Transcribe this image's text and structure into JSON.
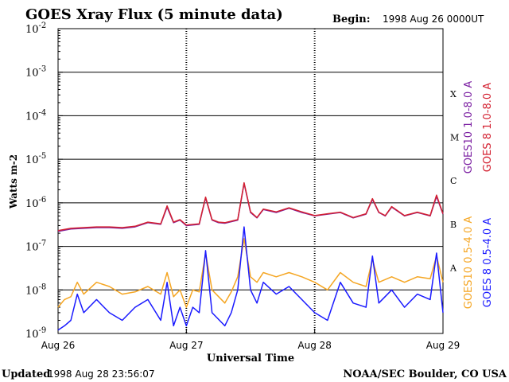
{
  "chart_data": {
    "type": "line",
    "title": "GOES Xray Flux (5 minute data)",
    "begin_label": "Begin:",
    "begin_value": "1998 Aug 26 0000UT",
    "ylabel": "Watts m-2",
    "xlabel": "Universal Time",
    "y_scale": "log",
    "ylim": [
      1e-09,
      0.01
    ],
    "y_ticks": [
      {
        "value": 0.01,
        "base": "10",
        "exp": "-2"
      },
      {
        "value": 0.001,
        "base": "10",
        "exp": "-3"
      },
      {
        "value": 0.0001,
        "base": "10",
        "exp": "-4"
      },
      {
        "value": 1e-05,
        "base": "10",
        "exp": "-5"
      },
      {
        "value": 1e-06,
        "base": "10",
        "exp": "-6"
      },
      {
        "value": 1e-07,
        "base": "10",
        "exp": "-7"
      },
      {
        "value": 1e-08,
        "base": "10",
        "exp": "-8"
      },
      {
        "value": 1e-09,
        "base": "10",
        "exp": "-9"
      }
    ],
    "x_unit": "days since 1998 Aug 26 0000UT",
    "xlim": [
      0,
      3
    ],
    "x_ticks": [
      {
        "value": 0,
        "label": "Aug 26"
      },
      {
        "value": 1,
        "label": "Aug 27"
      },
      {
        "value": 2,
        "label": "Aug 28"
      },
      {
        "value": 3,
        "label": "Aug 29"
      }
    ],
    "flare_classes": [
      {
        "label": "X",
        "value": 0.00032
      },
      {
        "label": "M",
        "value": 3.2e-05
      },
      {
        "label": "C",
        "value": 3.2e-06
      },
      {
        "label": "B",
        "value": 3.2e-07
      },
      {
        "label": "A",
        "value": 3.2e-08
      }
    ],
    "grid": "horizontal at each decade",
    "series": [
      {
        "name": "GOES10 1.0-8.0 A",
        "color": "#7b1fa2",
        "x": [
          0,
          0.1,
          0.2,
          0.3,
          0.4,
          0.5,
          0.6,
          0.7,
          0.8,
          0.85,
          0.9,
          0.95,
          1.0,
          1.1,
          1.15,
          1.2,
          1.25,
          1.3,
          1.4,
          1.45,
          1.5,
          1.55,
          1.6,
          1.7,
          1.8,
          1.9,
          2.0,
          2.1,
          2.2,
          2.3,
          2.4,
          2.45,
          2.5,
          2.55,
          2.6,
          2.7,
          2.8,
          2.9,
          2.95,
          3.0
        ],
        "values": [
          2.2e-07,
          2.5e-07,
          2.6e-07,
          2.7e-07,
          2.7e-07,
          2.6e-07,
          2.8e-07,
          3.5e-07,
          3.2e-07,
          8e-07,
          3.5e-07,
          4e-07,
          3e-07,
          3.2e-07,
          1.3e-06,
          4e-07,
          3.5e-07,
          3.4e-07,
          4e-07,
          2.8e-06,
          6e-07,
          4.5e-07,
          7e-07,
          6e-07,
          7.5e-07,
          6e-07,
          5e-07,
          5.5e-07,
          6e-07,
          4.5e-07,
          5.5e-07,
          1.2e-06,
          6e-07,
          5e-07,
          8e-07,
          5e-07,
          6e-07,
          5e-07,
          1.4e-06,
          5.5e-07
        ]
      },
      {
        "name": "GOES 8 1.0-8.0 A",
        "color": "#d32030",
        "x": [
          0,
          0.1,
          0.2,
          0.3,
          0.4,
          0.5,
          0.6,
          0.7,
          0.8,
          0.85,
          0.9,
          0.95,
          1.0,
          1.1,
          1.15,
          1.2,
          1.25,
          1.3,
          1.4,
          1.45,
          1.5,
          1.55,
          1.6,
          1.7,
          1.8,
          1.9,
          2.0,
          2.1,
          2.2,
          2.3,
          2.4,
          2.45,
          2.5,
          2.55,
          2.6,
          2.7,
          2.8,
          2.9,
          2.95,
          3.0
        ],
        "values": [
          2.3e-07,
          2.6e-07,
          2.7e-07,
          2.8e-07,
          2.8e-07,
          2.7e-07,
          2.9e-07,
          3.6e-07,
          3.3e-07,
          8.5e-07,
          3.6e-07,
          4.1e-07,
          3.1e-07,
          3.3e-07,
          1.35e-06,
          4.1e-07,
          3.6e-07,
          3.5e-07,
          4.1e-07,
          2.9e-06,
          6.2e-07,
          4.6e-07,
          7.2e-07,
          6.2e-07,
          7.7e-07,
          6.2e-07,
          5.1e-07,
          5.6e-07,
          6.1e-07,
          4.6e-07,
          5.6e-07,
          1.25e-06,
          6.1e-07,
          5.1e-07,
          8.2e-07,
          5.1e-07,
          6.1e-07,
          5.1e-07,
          1.5e-06,
          5.6e-07
        ]
      },
      {
        "name": "GOES10 0.5-4.0 A",
        "color": "#f5a623",
        "x": [
          0,
          0.05,
          0.1,
          0.15,
          0.2,
          0.3,
          0.4,
          0.5,
          0.6,
          0.7,
          0.8,
          0.85,
          0.9,
          0.95,
          1.0,
          1.05,
          1.1,
          1.15,
          1.2,
          1.3,
          1.35,
          1.4,
          1.45,
          1.5,
          1.55,
          1.6,
          1.7,
          1.8,
          1.9,
          2.0,
          2.1,
          2.2,
          2.3,
          2.4,
          2.45,
          2.5,
          2.6,
          2.7,
          2.8,
          2.9,
          2.95,
          3.0
        ],
        "values": [
          4e-09,
          6e-09,
          7e-09,
          1.5e-08,
          8e-09,
          1.5e-08,
          1.2e-08,
          8e-09,
          9e-09,
          1.2e-08,
          8e-09,
          2.5e-08,
          7e-09,
          1e-08,
          4e-09,
          1e-08,
          9e-09,
          7e-08,
          1e-08,
          5e-09,
          9e-09,
          2e-08,
          1.5e-07,
          2e-08,
          1.5e-08,
          2.5e-08,
          2e-08,
          2.5e-08,
          2e-08,
          1.5e-08,
          1e-08,
          2.5e-08,
          1.5e-08,
          1.2e-08,
          5e-08,
          1.5e-08,
          2e-08,
          1.5e-08,
          2e-08,
          1.8e-08,
          6e-08,
          1.5e-08
        ]
      },
      {
        "name": "GOES 8 0.5-4.0 A",
        "color": "#1a1aff",
        "x": [
          0,
          0.05,
          0.1,
          0.15,
          0.2,
          0.3,
          0.4,
          0.5,
          0.6,
          0.7,
          0.8,
          0.85,
          0.9,
          0.95,
          1.0,
          1.05,
          1.1,
          1.15,
          1.2,
          1.3,
          1.35,
          1.4,
          1.45,
          1.5,
          1.55,
          1.6,
          1.7,
          1.8,
          1.9,
          2.0,
          2.1,
          2.2,
          2.3,
          2.4,
          2.45,
          2.5,
          2.6,
          2.7,
          2.8,
          2.9,
          2.95,
          3.0
        ],
        "values": [
          1.2e-09,
          1.5e-09,
          2e-09,
          8e-09,
          3e-09,
          6e-09,
          3e-09,
          2e-09,
          4e-09,
          6e-09,
          2e-09,
          1.5e-08,
          1.5e-09,
          4e-09,
          1.5e-09,
          4e-09,
          3e-09,
          8e-08,
          3e-09,
          1.5e-09,
          3e-09,
          1e-08,
          2.8e-07,
          1e-08,
          5e-09,
          1.5e-08,
          8e-09,
          1.2e-08,
          6e-09,
          3e-09,
          2e-09,
          1.5e-08,
          5e-09,
          4e-09,
          6e-08,
          5e-09,
          1e-08,
          4e-09,
          8e-09,
          6e-09,
          7e-08,
          3e-09
        ]
      }
    ]
  },
  "footer": {
    "updated_label": "Updated",
    "updated_value": "1998 Aug 28 23:56:07",
    "credit": "NOAA/SEC Boulder, CO USA"
  }
}
